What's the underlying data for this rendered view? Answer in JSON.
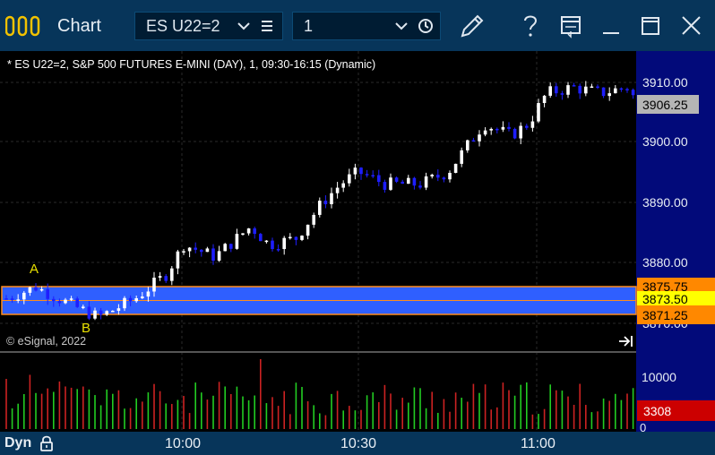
{
  "titlebar": {
    "title": "Chart",
    "symbol": "ES U22=2",
    "interval": "1",
    "icons": [
      "chart-logo-icon",
      "chevron-down-icon",
      "menu-lines-icon",
      "chevron-down-icon",
      "clock-icon",
      "pencil-icon",
      "help-icon",
      "window-icon",
      "minimize-icon",
      "maximize-icon",
      "close-icon"
    ]
  },
  "chart": {
    "header": "* ES U22=2, S&P 500 FUTURES E-MINI (DAY), 1, 09:30-16:15 (Dynamic)",
    "copyright": "© eSignal, 2022",
    "price_axis": {
      "labels": [
        "3910.00",
        "3900.00",
        "3890.00",
        "3880.00"
      ],
      "partial_label": "3870.00",
      "last_price": "3906.25",
      "range_top": "3875.75",
      "range_mid": "3873.50",
      "range_bottom": "3871.25"
    },
    "annotations": {
      "a": "A",
      "b": "B"
    },
    "volume_axis": {
      "label": "10000",
      "last": "3308",
      "zero": "0"
    },
    "colors": {
      "up": "#ffffff",
      "down": "#1e1eff",
      "band": "#2f5fff",
      "band_border": "#ff8c1a",
      "range_label": "#ff8800",
      "mid_label": "#ffff00",
      "vol_up": "#22cc22",
      "vol_down": "#cc2222"
    }
  },
  "status": {
    "mode": "Dyn",
    "time_labels": [
      "10:00",
      "10:30",
      "11:00"
    ]
  }
}
